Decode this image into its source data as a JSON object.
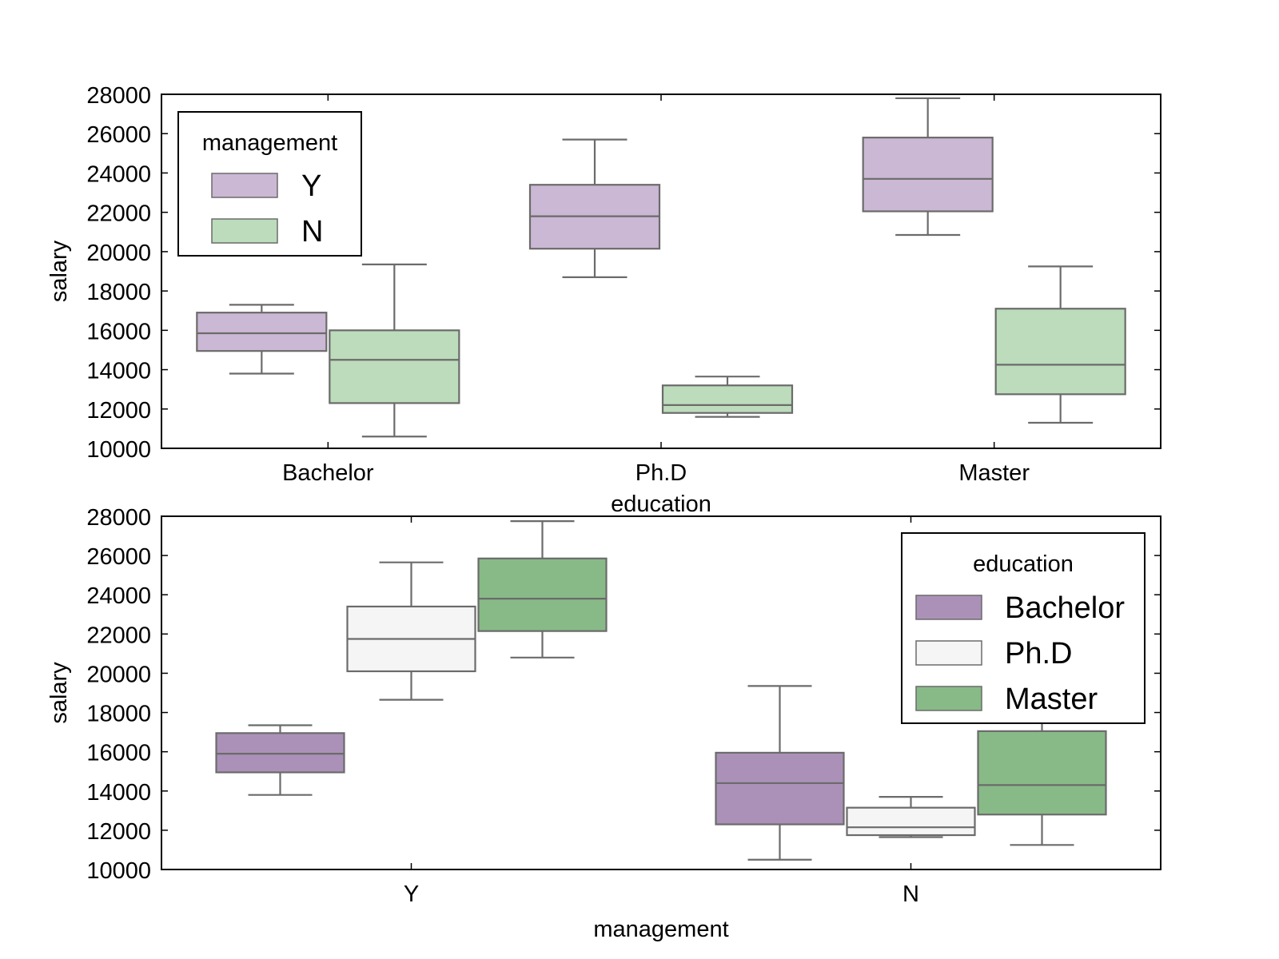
{
  "chart_data": [
    {
      "type": "box",
      "xlabel": "education",
      "ylabel": "salary",
      "ylim": [
        10000,
        28000
      ],
      "yticks": [
        "10000",
        "12000",
        "14000",
        "16000",
        "18000",
        "20000",
        "22000",
        "24000",
        "26000",
        "28000"
      ],
      "categories": [
        "Bachelor",
        "Ph.D",
        "Master"
      ],
      "legend": {
        "title": "management",
        "position": "top-left",
        "entries": [
          "Y",
          "N"
        ]
      },
      "series": [
        {
          "name": "Y",
          "color": "#cbb8d4",
          "boxes": [
            {
              "whislo": 13800,
              "q1": 14950,
              "med": 15850,
              "q3": 16900,
              "whishi": 17300
            },
            {
              "whislo": 18700,
              "q1": 20150,
              "med": 21800,
              "q3": 23400,
              "whishi": 25700
            },
            {
              "whislo": 20850,
              "q1": 22050,
              "med": 23700,
              "q3": 25800,
              "whishi": 27800
            }
          ]
        },
        {
          "name": "N",
          "color": "#bcdcbb",
          "boxes": [
            {
              "whislo": 10600,
              "q1": 12300,
              "med": 14500,
              "q3": 16000,
              "whishi": 19350
            },
            {
              "whislo": 11600,
              "q1": 11800,
              "med": 12200,
              "q3": 13200,
              "whishi": 13650
            },
            {
              "whislo": 11300,
              "q1": 12750,
              "med": 14250,
              "q3": 17100,
              "whishi": 19250
            }
          ]
        }
      ]
    },
    {
      "type": "box",
      "xlabel": "management",
      "ylabel": "salary",
      "ylim": [
        10000,
        28000
      ],
      "yticks": [
        "10000",
        "12000",
        "14000",
        "16000",
        "18000",
        "20000",
        "22000",
        "24000",
        "26000",
        "28000"
      ],
      "categories": [
        "Y",
        "N"
      ],
      "legend": {
        "title": "education",
        "position": "top-right",
        "entries": [
          "Bachelor",
          "Ph.D",
          "Master"
        ]
      },
      "series": [
        {
          "name": "Bachelor",
          "color": "#ab91b8",
          "boxes": [
            {
              "whislo": 13800,
              "q1": 14950,
              "med": 15900,
              "q3": 16950,
              "whishi": 17350
            },
            {
              "whislo": 10500,
              "q1": 12300,
              "med": 14400,
              "q3": 15950,
              "whishi": 19350
            }
          ]
        },
        {
          "name": "Ph.D",
          "color": "#f5f5f5",
          "boxes": [
            {
              "whislo": 18650,
              "q1": 20100,
              "med": 21750,
              "q3": 23400,
              "whishi": 25650
            },
            {
              "whislo": 11650,
              "q1": 11750,
              "med": 12150,
              "q3": 13150,
              "whishi": 13700
            }
          ]
        },
        {
          "name": "Master",
          "color": "#88ba87",
          "boxes": [
            {
              "whislo": 20800,
              "q1": 22150,
              "med": 23800,
              "q3": 25850,
              "whishi": 27750
            },
            {
              "whislo": 11250,
              "q1": 12800,
              "med": 14300,
              "q3": 17050,
              "whishi": 19250
            }
          ]
        }
      ]
    }
  ]
}
